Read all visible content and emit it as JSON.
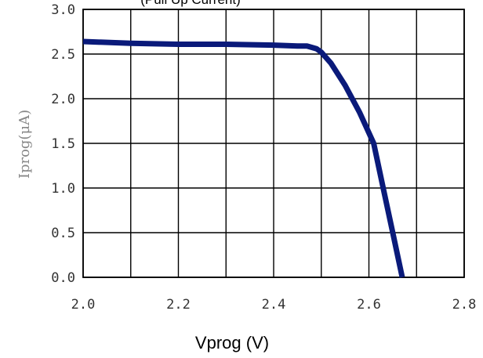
{
  "chart_data": {
    "type": "line",
    "title": "(Pull Up Current)",
    "xlabel": "Vprog (V)",
    "ylabel": "Iprog(μA)",
    "xlim": [
      2.0,
      2.8
    ],
    "ylim": [
      0.0,
      3.0
    ],
    "grid": true,
    "x_ticks": [
      2.0,
      2.1,
      2.2,
      2.3,
      2.4,
      2.5,
      2.6,
      2.7,
      2.8
    ],
    "y_ticks": [
      0.0,
      0.5,
      1.0,
      1.5,
      2.0,
      2.5,
      3.0
    ],
    "x_tick_labels": [
      {
        "value": 2.0,
        "text": "2.0"
      },
      {
        "value": 2.2,
        "text": "2.2"
      },
      {
        "value": 2.4,
        "text": "2.4"
      },
      {
        "value": 2.6,
        "text": "2.6"
      },
      {
        "value": 2.8,
        "text": "2.8"
      }
    ],
    "y_tick_labels": [
      {
        "value": 0.0,
        "text": "0.0"
      },
      {
        "value": 0.5,
        "text": "0.5"
      },
      {
        "value": 1.0,
        "text": "1.0"
      },
      {
        "value": 1.5,
        "text": "1.5"
      },
      {
        "value": 2.0,
        "text": "2.0"
      },
      {
        "value": 2.5,
        "text": "2.5"
      },
      {
        "value": 3.0,
        "text": "3.0"
      }
    ],
    "series": [
      {
        "color": "#0a1a7a",
        "x": [
          2.0,
          2.1,
          2.2,
          2.3,
          2.4,
          2.45,
          2.47,
          2.49,
          2.5,
          2.52,
          2.55,
          2.58,
          2.61,
          2.63,
          2.65,
          2.67
        ],
        "y": [
          2.64,
          2.62,
          2.61,
          2.61,
          2.6,
          2.59,
          2.59,
          2.56,
          2.52,
          2.4,
          2.15,
          1.85,
          1.5,
          1.0,
          0.5,
          0.0
        ]
      }
    ]
  }
}
